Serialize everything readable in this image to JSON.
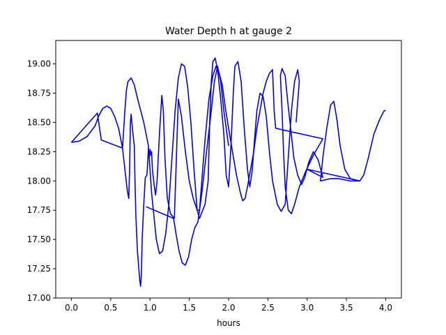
{
  "chart_data": {
    "type": "line",
    "title": "Water Depth h at gauge 2",
    "xlabel": "hours",
    "ylabel": "",
    "xlim": [
      -0.2,
      4.2
    ],
    "ylim": [
      17.0,
      19.2
    ],
    "xticks": [
      0.0,
      0.5,
      1.0,
      1.5,
      2.0,
      2.5,
      3.0,
      3.5,
      4.0
    ],
    "xtick_labels": [
      "0.0",
      "0.5",
      "1.0",
      "1.5",
      "2.0",
      "2.5",
      "3.0",
      "3.5",
      "4.0"
    ],
    "yticks": [
      17.0,
      17.25,
      17.5,
      17.75,
      18.0,
      18.25,
      18.5,
      18.75,
      19.0
    ],
    "ytick_labels": [
      "17.00",
      "17.25",
      "17.50",
      "17.75",
      "18.00",
      "18.25",
      "18.50",
      "18.75",
      "19.00"
    ],
    "grid": false,
    "series": [
      {
        "color": "#0000ee",
        "points": [
          [
            0.0,
            18.33
          ],
          [
            0.1,
            18.34
          ],
          [
            0.2,
            18.38
          ],
          [
            0.3,
            18.47
          ],
          [
            0.35,
            18.56
          ],
          [
            0.4,
            18.62
          ],
          [
            0.45,
            18.64
          ],
          [
            0.5,
            18.62
          ],
          [
            0.55,
            18.55
          ],
          [
            0.6,
            18.45
          ],
          [
            0.65,
            18.28
          ],
          [
            0.68,
            18.1
          ],
          [
            0.71,
            17.92
          ],
          [
            0.73,
            17.85
          ],
          [
            0.74,
            18.1
          ],
          [
            0.75,
            18.5
          ],
          [
            0.76,
            18.57
          ],
          [
            0.78,
            18.42
          ],
          [
            0.8,
            18.3
          ],
          [
            0.81,
            17.95
          ],
          [
            0.82,
            17.7
          ],
          [
            0.84,
            17.4
          ],
          [
            0.87,
            17.15
          ],
          [
            0.88,
            17.1
          ],
          [
            0.89,
            17.2
          ],
          [
            0.9,
            17.5
          ],
          [
            0.92,
            17.8
          ],
          [
            0.94,
            18.03
          ],
          [
            0.96,
            18.05
          ],
          [
            0.97,
            18.15
          ],
          [
            0.98,
            18.28
          ],
          [
            0.99,
            18.2
          ],
          [
            1.0,
            18.27
          ],
          [
            1.01,
            18.22
          ],
          [
            1.02,
            18.25
          ],
          [
            1.03,
            18.1
          ],
          [
            1.05,
            17.98
          ],
          [
            1.07,
            17.88
          ],
          [
            1.09,
            18.0
          ],
          [
            1.12,
            18.4
          ],
          [
            1.15,
            18.73
          ],
          [
            1.17,
            18.6
          ],
          [
            1.19,
            18.2
          ],
          [
            1.22,
            17.85
          ],
          [
            1.26,
            17.72
          ],
          [
            1.31,
            17.68
          ],
          [
            1.36,
            18.7
          ],
          [
            1.4,
            18.55
          ],
          [
            1.45,
            18.25
          ],
          [
            1.5,
            18.0
          ],
          [
            1.55,
            17.85
          ],
          [
            1.6,
            17.75
          ],
          [
            1.63,
            17.75
          ],
          [
            1.7,
            18.35
          ],
          [
            1.75,
            18.7
          ],
          [
            1.8,
            18.9
          ],
          [
            1.84,
            18.98
          ],
          [
            1.88,
            18.92
          ],
          [
            1.92,
            18.82
          ],
          [
            1.96,
            18.62
          ],
          [
            2.0,
            18.45
          ],
          [
            2.05,
            18.25
          ],
          [
            2.1,
            18.05
          ],
          [
            2.15,
            17.9
          ],
          [
            2.18,
            17.83
          ],
          [
            2.21,
            17.85
          ],
          [
            2.24,
            17.95
          ],
          [
            2.28,
            18.1
          ],
          [
            2.32,
            18.25
          ],
          [
            2.36,
            18.45
          ],
          [
            2.4,
            18.6
          ],
          [
            2.44,
            18.75
          ],
          [
            2.48,
            18.85
          ],
          [
            2.52,
            18.92
          ],
          [
            2.56,
            18.95
          ],
          [
            2.58,
            18.6
          ],
          [
            2.6,
            18.45
          ],
          [
            3.2,
            18.36
          ],
          [
            3.08,
            18.22
          ],
          [
            2.98,
            18.08
          ],
          [
            2.9,
            17.95
          ],
          [
            2.84,
            17.8
          ],
          [
            2.8,
            17.72
          ],
          [
            2.76,
            17.75
          ],
          [
            2.72,
            17.95
          ],
          [
            2.7,
            18.25
          ],
          [
            2.68,
            18.6
          ],
          [
            2.66,
            18.9
          ],
          [
            2.68,
            18.96
          ],
          [
            2.72,
            18.9
          ],
          [
            2.75,
            18.7
          ],
          [
            2.79,
            18.45
          ],
          [
            2.83,
            18.2
          ],
          [
            2.88,
            18.05
          ],
          [
            2.93,
            17.97
          ],
          [
            2.97,
            18.03
          ],
          [
            3.02,
            18.16
          ],
          [
            3.08,
            18.25
          ],
          [
            3.14,
            18.18
          ],
          [
            3.2,
            18.03
          ],
          [
            3.0,
            18.1
          ],
          [
            3.67,
            18.0
          ],
          [
            3.55,
            18.02
          ],
          [
            3.48,
            18.1
          ],
          [
            3.42,
            18.3
          ],
          [
            3.38,
            18.52
          ],
          [
            3.34,
            18.68
          ],
          [
            3.3,
            18.65
          ],
          [
            3.25,
            18.45
          ],
          [
            3.2,
            18.2
          ],
          [
            3.17,
            18.0
          ],
          [
            3.3,
            18.02
          ],
          [
            3.4,
            18.02
          ],
          [
            3.55,
            18.0
          ],
          [
            3.67,
            18.0
          ],
          [
            3.72,
            18.05
          ],
          [
            3.78,
            18.2
          ],
          [
            3.85,
            18.4
          ],
          [
            3.92,
            18.52
          ],
          [
            3.98,
            18.6
          ],
          [
            4.0,
            18.6
          ]
        ]
      },
      {
        "color": "#0000ee",
        "points": [
          [
            0.0,
            18.33
          ],
          [
            0.33,
            18.58
          ],
          [
            0.38,
            18.35
          ],
          [
            0.65,
            18.28
          ],
          [
            0.68,
            18.6
          ],
          [
            0.7,
            18.78
          ],
          [
            0.72,
            18.85
          ],
          [
            0.76,
            18.88
          ],
          [
            0.8,
            18.82
          ],
          [
            0.85,
            18.68
          ],
          [
            0.92,
            18.5
          ],
          [
            0.98,
            18.3
          ],
          [
            1.02,
            17.9
          ],
          [
            1.05,
            17.7
          ],
          [
            1.08,
            17.5
          ],
          [
            1.12,
            17.38
          ],
          [
            1.16,
            17.4
          ],
          [
            1.2,
            17.55
          ],
          [
            1.24,
            17.8
          ],
          [
            1.28,
            18.2
          ],
          [
            1.32,
            18.6
          ],
          [
            1.36,
            18.88
          ],
          [
            1.4,
            19.0
          ],
          [
            1.44,
            18.98
          ],
          [
            1.48,
            18.8
          ],
          [
            1.52,
            18.5
          ],
          [
            1.56,
            18.1
          ],
          [
            1.6,
            17.75
          ],
          [
            1.63,
            17.68
          ],
          [
            1.7,
            17.8
          ],
          [
            1.74,
            18.0
          ],
          [
            1.76,
            18.5
          ],
          [
            1.78,
            18.85
          ],
          [
            1.8,
            19.02
          ],
          [
            1.83,
            19.05
          ],
          [
            1.86,
            18.95
          ],
          [
            1.9,
            18.7
          ],
          [
            1.94,
            18.4
          ],
          [
            1.97,
            18.05
          ],
          [
            2.0,
            17.95
          ],
          [
            2.03,
            18.3
          ],
          [
            2.06,
            18.75
          ],
          [
            2.08,
            18.98
          ],
          [
            2.12,
            19.02
          ],
          [
            2.16,
            18.85
          ],
          [
            2.2,
            18.45
          ],
          [
            2.24,
            18.1
          ],
          [
            2.27,
            17.95
          ],
          [
            2.3,
            18.08
          ],
          [
            2.33,
            18.35
          ],
          [
            2.36,
            18.6
          ],
          [
            2.4,
            18.75
          ],
          [
            2.44,
            18.72
          ],
          [
            2.48,
            18.55
          ],
          [
            2.52,
            18.25
          ],
          [
            2.56,
            18.0
          ],
          [
            2.62,
            17.8
          ],
          [
            2.67,
            17.74
          ],
          [
            2.72,
            17.8
          ],
          [
            2.76,
            18.2
          ],
          [
            2.8,
            18.6
          ],
          [
            2.84,
            18.85
          ],
          [
            2.88,
            18.95
          ],
          [
            2.9,
            18.85
          ],
          [
            2.86,
            18.5
          ]
        ]
      },
      {
        "color": "#0000ee",
        "points": [
          [
            0.95,
            17.78
          ],
          [
            1.3,
            17.68
          ],
          [
            1.33,
            17.55
          ],
          [
            1.37,
            17.4
          ],
          [
            1.41,
            17.3
          ],
          [
            1.45,
            17.28
          ],
          [
            1.49,
            17.35
          ],
          [
            1.53,
            17.5
          ],
          [
            1.57,
            17.6
          ],
          [
            1.61,
            17.65
          ],
          [
            1.66,
            17.9
          ],
          [
            1.72,
            18.25
          ],
          [
            1.78,
            18.6
          ],
          [
            1.82,
            18.85
          ],
          [
            1.86,
            18.98
          ],
          [
            1.9,
            18.85
          ],
          [
            1.94,
            18.6
          ],
          [
            2.0,
            18.3
          ]
        ]
      }
    ]
  }
}
